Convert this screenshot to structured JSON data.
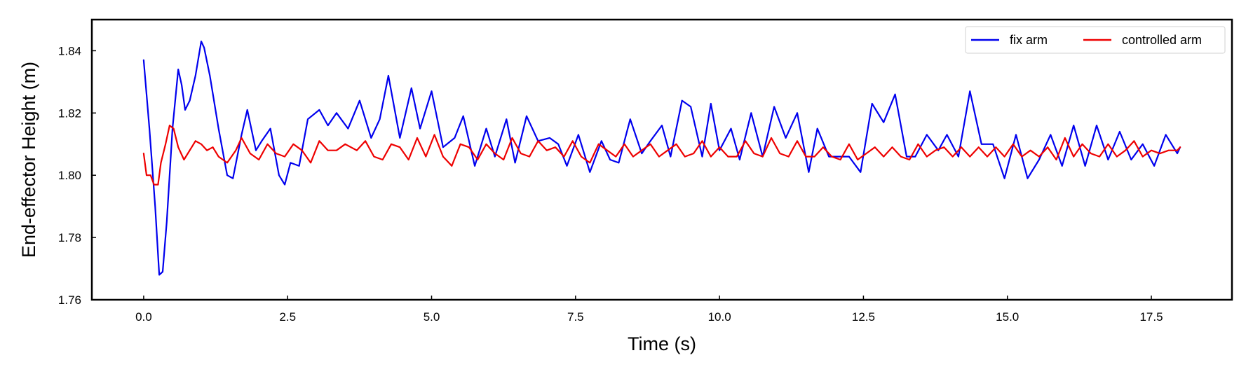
{
  "chart_data": {
    "type": "line",
    "title": "",
    "xlabel": "Time (s)",
    "ylabel": "End-effector Height (m)",
    "xlim": [
      -0.9,
      18.9
    ],
    "ylim": [
      1.76,
      1.85
    ],
    "x_ticks": [
      0.0,
      2.5,
      5.0,
      7.5,
      10.0,
      12.5,
      15.0,
      17.5
    ],
    "x_tick_labels": [
      "0.0",
      "2.5",
      "5.0",
      "7.5",
      "10.0",
      "12.5",
      "15.0",
      "17.5"
    ],
    "y_ticks": [
      1.76,
      1.78,
      1.8,
      1.82,
      1.84
    ],
    "y_tick_labels": [
      "1.76",
      "1.78",
      "1.80",
      "1.82",
      "1.84"
    ],
    "grid": false,
    "legend_position": "top-right",
    "series": [
      {
        "name": "fix arm",
        "color": "#0000ee",
        "x": [
          0.0,
          0.1,
          0.2,
          0.27,
          0.33,
          0.4,
          0.5,
          0.6,
          0.66,
          0.72,
          0.8,
          0.9,
          1.0,
          1.05,
          1.15,
          1.3,
          1.45,
          1.55,
          1.7,
          1.8,
          1.95,
          2.05,
          2.2,
          2.35,
          2.45,
          2.55,
          2.7,
          2.85,
          3.05,
          3.2,
          3.35,
          3.55,
          3.75,
          3.95,
          4.1,
          4.25,
          4.45,
          4.65,
          4.8,
          5.0,
          5.2,
          5.4,
          5.55,
          5.75,
          5.95,
          6.1,
          6.3,
          6.45,
          6.65,
          6.85,
          7.05,
          7.2,
          7.35,
          7.55,
          7.75,
          7.95,
          8.1,
          8.25,
          8.45,
          8.65,
          8.8,
          9.0,
          9.15,
          9.35,
          9.5,
          9.7,
          9.85,
          10.0,
          10.2,
          10.35,
          10.55,
          10.75,
          10.95,
          11.15,
          11.35,
          11.55,
          11.7,
          11.9,
          12.05,
          12.25,
          12.45,
          12.65,
          12.85,
          13.05,
          13.25,
          13.4,
          13.6,
          13.8,
          13.95,
          14.15,
          14.35,
          14.55,
          14.75,
          14.95,
          15.15,
          15.35,
          15.55,
          15.75,
          15.95,
          16.15,
          16.35,
          16.55,
          16.75,
          16.95,
          17.15,
          17.35,
          17.55,
          17.75,
          17.95,
          18.0
        ],
        "y": [
          1.837,
          1.815,
          1.79,
          1.768,
          1.769,
          1.785,
          1.815,
          1.834,
          1.829,
          1.821,
          1.824,
          1.832,
          1.843,
          1.841,
          1.832,
          1.815,
          1.8,
          1.799,
          1.813,
          1.821,
          1.808,
          1.811,
          1.815,
          1.8,
          1.797,
          1.804,
          1.803,
          1.818,
          1.821,
          1.816,
          1.82,
          1.815,
          1.824,
          1.812,
          1.818,
          1.832,
          1.812,
          1.828,
          1.815,
          1.827,
          1.809,
          1.812,
          1.819,
          1.803,
          1.815,
          1.806,
          1.818,
          1.804,
          1.819,
          1.811,
          1.812,
          1.81,
          1.803,
          1.813,
          1.801,
          1.811,
          1.805,
          1.804,
          1.818,
          1.807,
          1.811,
          1.816,
          1.806,
          1.824,
          1.822,
          1.806,
          1.823,
          1.808,
          1.815,
          1.805,
          1.82,
          1.806,
          1.822,
          1.812,
          1.82,
          1.801,
          1.815,
          1.806,
          1.806,
          1.806,
          1.801,
          1.823,
          1.817,
          1.826,
          1.806,
          1.806,
          1.813,
          1.808,
          1.813,
          1.806,
          1.827,
          1.81,
          1.81,
          1.799,
          1.813,
          1.799,
          1.805,
          1.813,
          1.803,
          1.816,
          1.803,
          1.816,
          1.805,
          1.814,
          1.805,
          1.81,
          1.803,
          1.813,
          1.807,
          1.809
        ]
      },
      {
        "name": "controlled arm",
        "color": "#ee0000",
        "x": [
          0.0,
          0.05,
          0.12,
          0.18,
          0.25,
          0.3,
          0.38,
          0.45,
          0.52,
          0.6,
          0.7,
          0.8,
          0.9,
          1.0,
          1.1,
          1.2,
          1.3,
          1.45,
          1.6,
          1.7,
          1.85,
          2.0,
          2.15,
          2.3,
          2.45,
          2.6,
          2.75,
          2.9,
          3.05,
          3.2,
          3.35,
          3.5,
          3.7,
          3.85,
          4.0,
          4.15,
          4.3,
          4.45,
          4.6,
          4.75,
          4.9,
          5.05,
          5.2,
          5.35,
          5.5,
          5.65,
          5.8,
          5.95,
          6.1,
          6.25,
          6.4,
          6.55,
          6.7,
          6.85,
          7.0,
          7.15,
          7.3,
          7.45,
          7.6,
          7.75,
          7.9,
          8.05,
          8.2,
          8.35,
          8.5,
          8.65,
          8.8,
          8.95,
          9.1,
          9.25,
          9.4,
          9.55,
          9.7,
          9.85,
          10.0,
          10.15,
          10.3,
          10.45,
          10.6,
          10.75,
          10.9,
          11.05,
          11.2,
          11.35,
          11.5,
          11.65,
          11.8,
          11.95,
          12.1,
          12.25,
          12.4,
          12.55,
          12.7,
          12.85,
          13.0,
          13.15,
          13.3,
          13.45,
          13.6,
          13.75,
          13.9,
          14.05,
          14.2,
          14.35,
          14.5,
          14.65,
          14.8,
          14.95,
          15.1,
          15.25,
          15.4,
          15.55,
          15.7,
          15.85,
          16.0,
          16.15,
          16.3,
          16.45,
          16.6,
          16.75,
          16.9,
          17.05,
          17.2,
          17.35,
          17.5,
          17.65,
          17.8,
          17.95,
          18.0
        ],
        "y": [
          1.807,
          1.8,
          1.8,
          1.797,
          1.797,
          1.804,
          1.81,
          1.816,
          1.815,
          1.809,
          1.805,
          1.808,
          1.811,
          1.81,
          1.808,
          1.809,
          1.806,
          1.804,
          1.808,
          1.812,
          1.807,
          1.805,
          1.81,
          1.807,
          1.806,
          1.81,
          1.808,
          1.804,
          1.811,
          1.808,
          1.808,
          1.81,
          1.808,
          1.811,
          1.806,
          1.805,
          1.81,
          1.809,
          1.805,
          1.812,
          1.806,
          1.813,
          1.806,
          1.803,
          1.81,
          1.809,
          1.805,
          1.81,
          1.807,
          1.805,
          1.812,
          1.807,
          1.806,
          1.811,
          1.808,
          1.809,
          1.806,
          1.811,
          1.806,
          1.804,
          1.81,
          1.808,
          1.806,
          1.81,
          1.806,
          1.808,
          1.81,
          1.806,
          1.808,
          1.81,
          1.806,
          1.807,
          1.811,
          1.806,
          1.809,
          1.806,
          1.806,
          1.811,
          1.807,
          1.806,
          1.812,
          1.807,
          1.806,
          1.811,
          1.806,
          1.806,
          1.809,
          1.806,
          1.805,
          1.81,
          1.805,
          1.807,
          1.809,
          1.806,
          1.809,
          1.806,
          1.805,
          1.81,
          1.806,
          1.808,
          1.809,
          1.806,
          1.809,
          1.806,
          1.809,
          1.806,
          1.809,
          1.806,
          1.81,
          1.806,
          1.808,
          1.806,
          1.809,
          1.805,
          1.812,
          1.806,
          1.81,
          1.807,
          1.806,
          1.81,
          1.806,
          1.808,
          1.811,
          1.806,
          1.808,
          1.807,
          1.808,
          1.808,
          1.809
        ]
      }
    ]
  }
}
